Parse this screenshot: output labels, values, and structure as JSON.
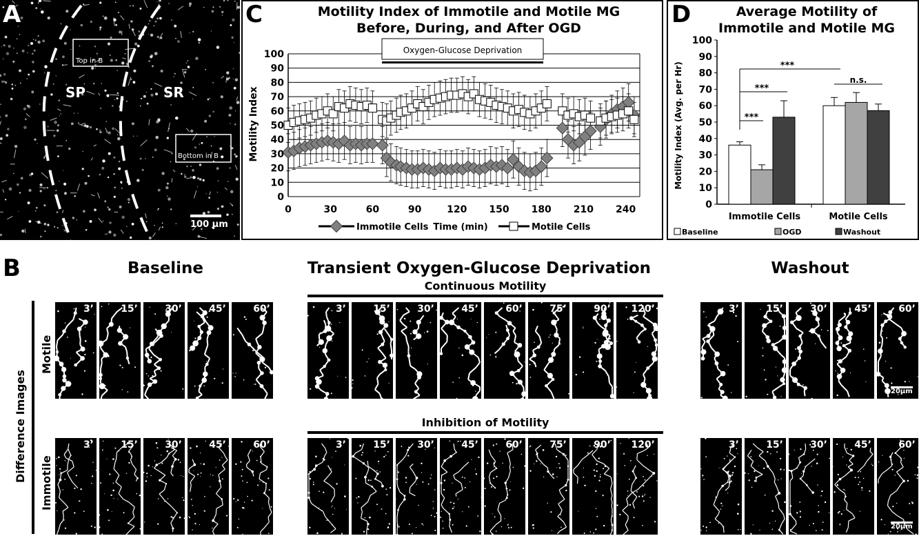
{
  "panel_a": {
    "label": "A",
    "region_left": "SP",
    "region_right": "SR",
    "box_top": "Top in B",
    "box_bottom": "Bottom in B",
    "scale": "100 µm"
  },
  "panel_c": {
    "label": "C",
    "title_line1": "Motility Index of Immotile and Motile MG",
    "title_line2": "Before, During, and After OGD",
    "ogd_banner": "Oxygen-Glucose Deprivation",
    "chart_data": {
      "type": "line",
      "xlabel": "Time (min)",
      "ylabel": "Motility Index",
      "xlim": [
        0,
        250
      ],
      "ylim": [
        0,
        100
      ],
      "xticks": [
        0,
        30,
        60,
        90,
        120,
        150,
        180,
        210,
        240
      ],
      "yticks": [
        0,
        10,
        20,
        30,
        40,
        50,
        60,
        70,
        80,
        90,
        100
      ],
      "series": [
        {
          "name": "Immotile Cells",
          "marker": "diamond",
          "color": "#808080",
          "x": [
            0,
            4,
            8,
            12,
            16,
            20,
            24,
            28,
            32,
            36,
            40,
            44,
            48,
            52,
            56,
            60,
            67,
            70,
            73,
            77,
            80,
            84,
            88,
            92,
            96,
            100,
            104,
            108,
            112,
            116,
            120,
            124,
            128,
            132,
            136,
            140,
            144,
            148,
            152,
            156,
            160,
            164,
            168,
            172,
            176,
            180,
            184,
            195,
            199,
            203,
            207,
            211,
            215,
            222,
            226,
            230,
            234,
            238,
            242,
            246
          ],
          "y": [
            31,
            32,
            34,
            35,
            36,
            37,
            38,
            39,
            38,
            37,
            39,
            36,
            37,
            36,
            37,
            37,
            36,
            27,
            24,
            22,
            21,
            20,
            19,
            19,
            20,
            19,
            18,
            20,
            19,
            19,
            20,
            19,
            21,
            20,
            19,
            20,
            22,
            21,
            22,
            20,
            26,
            21,
            18,
            17,
            18,
            21,
            27,
            48,
            40,
            36,
            38,
            42,
            46,
            49,
            54,
            58,
            61,
            63,
            66,
            57
          ]
        },
        {
          "name": "Motile Cells",
          "marker": "square",
          "color": "#ffffff",
          "x": [
            0,
            4,
            8,
            12,
            16,
            20,
            24,
            28,
            32,
            36,
            40,
            44,
            48,
            52,
            56,
            60,
            67,
            70,
            73,
            77,
            80,
            84,
            88,
            92,
            96,
            100,
            104,
            108,
            112,
            116,
            120,
            124,
            128,
            132,
            136,
            140,
            144,
            148,
            152,
            156,
            160,
            164,
            168,
            172,
            176,
            180,
            184,
            195,
            199,
            203,
            207,
            211,
            215,
            222,
            226,
            230,
            234,
            238,
            242,
            246
          ],
          "y": [
            50,
            52,
            53,
            54,
            55,
            57,
            58,
            60,
            58,
            63,
            62,
            65,
            64,
            63,
            64,
            62,
            54,
            53,
            55,
            57,
            59,
            60,
            62,
            65,
            63,
            66,
            68,
            69,
            70,
            71,
            71,
            72,
            70,
            72,
            68,
            67,
            66,
            64,
            63,
            62,
            60,
            61,
            59,
            58,
            60,
            62,
            65,
            60,
            57,
            58,
            56,
            57,
            55,
            53,
            55,
            56,
            57,
            58,
            60,
            54
          ]
        }
      ]
    }
  },
  "panel_d": {
    "label": "D",
    "title_line1": "Average Motility of",
    "title_line2": "Immotile and Motile MG",
    "sig1": "***",
    "sig2": "***",
    "sig3": "***",
    "sig_ns": "n.s.",
    "chart_data": {
      "type": "bar",
      "categories": [
        "Immotile Cells",
        "Motile Cells"
      ],
      "ylabel": "Motility Index (Avg. per Hr)",
      "ylim": [
        0,
        100
      ],
      "yticks": [
        0,
        10,
        20,
        30,
        40,
        50,
        60,
        70,
        80,
        90,
        100
      ],
      "series": [
        {
          "name": "Baseline",
          "color": "#ffffff",
          "values": [
            36,
            60
          ],
          "errors": [
            2,
            5
          ]
        },
        {
          "name": "OGD",
          "color": "#a6a6a6",
          "values": [
            21,
            62
          ],
          "errors": [
            3,
            6
          ]
        },
        {
          "name": "Washout",
          "color": "#404040",
          "values": [
            53,
            57
          ],
          "errors": [
            10,
            4
          ]
        }
      ]
    }
  },
  "panel_b": {
    "label": "B",
    "side_label": "Difference Images",
    "row_motile": "Motile",
    "row_immotile": "Immotile",
    "sec_baseline": "Baseline",
    "sec_ogd": "Transient Oxygen-Glucose Deprivation",
    "sec_washout": "Washout",
    "sub_continuous": "Continuous Motility",
    "sub_inhibition": "Inhibition of Motility",
    "scale": "20µm",
    "baseline_times": [
      "3’",
      "15’",
      "30’",
      "45’",
      "60’"
    ],
    "ogd_times": [
      "3’",
      "15’",
      "30’",
      "45’",
      "60’",
      "75’",
      "90’",
      "120’"
    ],
    "washout_times": [
      "3’",
      "15’",
      "30’",
      "45’",
      "60’"
    ]
  }
}
